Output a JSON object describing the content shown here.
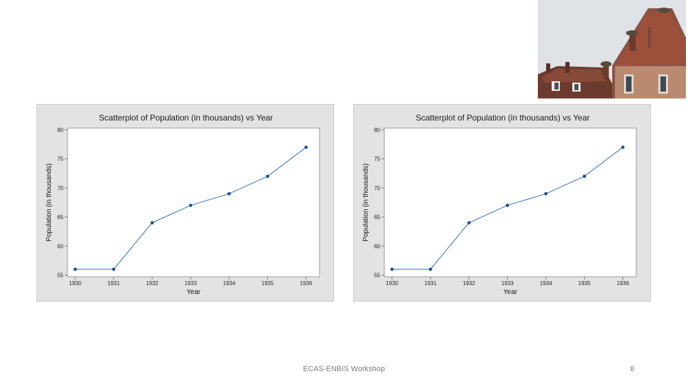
{
  "slide": {
    "footer": "ECAS-ENBIS Workshop",
    "page_number": "8",
    "photo": "rooftops with stork nests"
  },
  "chart_data": [
    {
      "type": "line",
      "title": "Scatterplot of Population (in thousands) vs Year",
      "xlabel": "Year",
      "ylabel": "Population (in thousands)",
      "x": [
        1930,
        1931,
        1932,
        1933,
        1934,
        1935,
        1936
      ],
      "series": [
        {
          "values": [
            56,
            56,
            64,
            67,
            69,
            72,
            77
          ]
        }
      ],
      "xticks": [
        "1930",
        "1931",
        "1932",
        "1933",
        "1934",
        "1935",
        "1936"
      ],
      "yticks": [
        "55",
        "60",
        "65",
        "70",
        "75",
        "80"
      ],
      "xlim": [
        1929.8,
        1936.35
      ],
      "ylim": [
        54.7,
        80.3
      ],
      "grid": false,
      "colors": {
        "line": "#2b6cb5",
        "marker": "#1f4e8c",
        "panel": "#e3e3e3"
      }
    },
    {
      "type": "line",
      "title": "Scatterplot of Population (in thousands) vs Year",
      "xlabel": "Year",
      "ylabel": "Population (in thousands)",
      "x": [
        1930,
        1931,
        1932,
        1933,
        1934,
        1935,
        1936
      ],
      "series": [
        {
          "values": [
            56,
            56,
            64,
            67,
            69,
            72,
            77
          ]
        }
      ],
      "xticks": [
        "1930",
        "1931",
        "1932",
        "1933",
        "1934",
        "1935",
        "1936"
      ],
      "yticks": [
        "55",
        "60",
        "65",
        "70",
        "75",
        "80"
      ],
      "xlim": [
        1929.8,
        1936.35
      ],
      "ylim": [
        54.7,
        80.3
      ],
      "grid": false,
      "colors": {
        "line": "#2b6cb5",
        "marker": "#1f4e8c",
        "panel": "#e3e3e3"
      }
    }
  ]
}
